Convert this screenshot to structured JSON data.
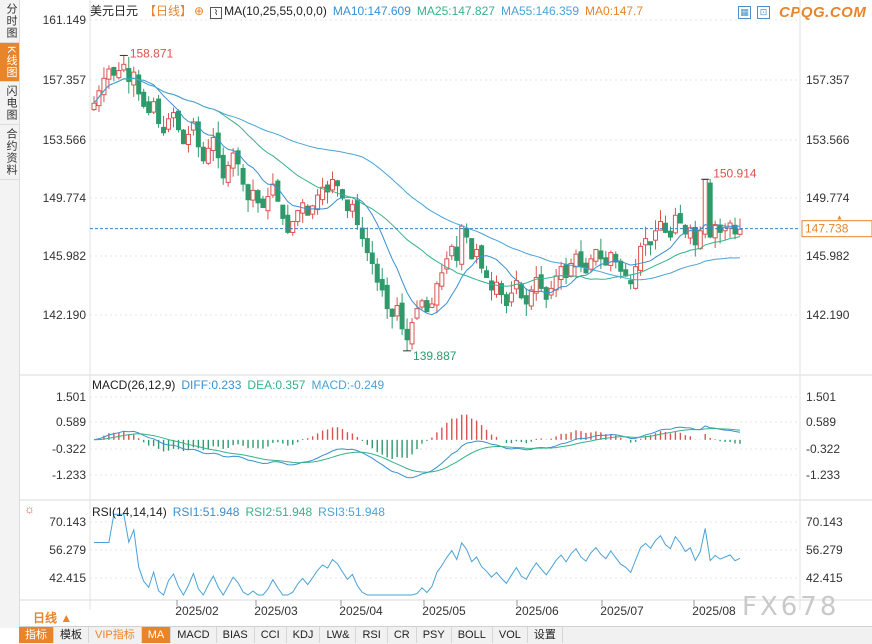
{
  "sidebar": {
    "tabs": [
      {
        "label": "分时图",
        "active": false
      },
      {
        "label": "K线图",
        "active": true
      },
      {
        "label": "闪电图",
        "active": false
      },
      {
        "label": "合约资料",
        "active": false
      }
    ]
  },
  "header": {
    "symbol": "美元日元",
    "period_tag": "【日线】",
    "ma_name": "MA(10,25,55,0,0,0)",
    "ma10": "MA10:147.609",
    "ma25": "MA25:147.827",
    "ma55": "MA55:146.359",
    "ma0": "MA0:147.7"
  },
  "logo": "CPQG.COM",
  "watermark": "FX678",
  "colors": {
    "up": "#d9534f",
    "down": "#2e9a6b",
    "ma10": "#3a8fd0",
    "ma25": "#33b38a",
    "ma55": "#4aa3d6",
    "accent": "#e8852b",
    "grid": "#e6e6e6",
    "last_line": "#3a7fc0"
  },
  "price_chart": {
    "ticks": [
      "161.149",
      "157.357",
      "153.566",
      "149.774",
      "145.982",
      "142.190"
    ],
    "last_price": "147.738",
    "high_label": "158.871",
    "low_label": "139.887",
    "recent_high_label": "150.914"
  },
  "macd": {
    "title": "MACD(26,12,9)",
    "diff": "DIFF:0.233",
    "dea": "DEA:0.357",
    "macd": "MACD:-0.249",
    "ticks": [
      "1.501",
      "0.589",
      "-0.322",
      "-1.233"
    ]
  },
  "rsi": {
    "title": "RSI(14,14,14)",
    "rsi1": "RSI1:51.948",
    "rsi2": "RSI2:51.948",
    "rsi3": "RSI3:51.948",
    "ticks": [
      "70.143",
      "56.279",
      "42.415"
    ]
  },
  "x_axis": {
    "months": [
      "2025/02",
      "2025/03",
      "2025/04",
      "2025/05",
      "2025/06",
      "2025/07",
      "2025/08"
    ]
  },
  "period_selector": "日线",
  "toolbar": [
    "指标",
    "模板",
    "VIP指标",
    "MA",
    "MACD",
    "BIAS",
    "CCI",
    "KDJ",
    "LW&",
    "RSI",
    "CR",
    "PSY",
    "BOLL",
    "VOL",
    "设置"
  ],
  "chart_data": {
    "type": "candlestick",
    "series_close": [
      155.8,
      156.6,
      157.4,
      158.0,
      157.6,
      157.9,
      158.3,
      157.2,
      157.8,
      156.4,
      155.6,
      155.2,
      155.9,
      154.5,
      153.9,
      154.8,
      155.2,
      154.1,
      153.2,
      153.8,
      154.6,
      153.0,
      152.1,
      152.9,
      153.6,
      152.3,
      151.0,
      151.8,
      152.6,
      151.9,
      150.6,
      149.6,
      150.2,
      149.4,
      149.1,
      149.8,
      150.6,
      149.5,
      148.4,
      147.5,
      148.2,
      148.9,
      149.4,
      148.6,
      149.2,
      149.9,
      150.4,
      150.1,
      150.9,
      150.5,
      149.7,
      148.9,
      149.3,
      148.0,
      147.1,
      146.2,
      145.5,
      144.3,
      143.8,
      142.6,
      142.1,
      142.8,
      141.3,
      140.6,
      141.7,
      142.6,
      143.1,
      142.4,
      142.9,
      144.2,
      144.9,
      145.8,
      146.6,
      145.7,
      147.9,
      147.2,
      145.8,
      146.4,
      145.2,
      144.6,
      143.8,
      144.3,
      143.5,
      142.8,
      143.6,
      144.4,
      143.3,
      142.9,
      143.8,
      144.6,
      143.9,
      143.2,
      143.9,
      144.7,
      145.3,
      144.6,
      145.5,
      146.1,
      145.3,
      144.9,
      145.8,
      146.4,
      145.8,
      145.4,
      146.2,
      145.6,
      145.0,
      144.7,
      144.2,
      145.3,
      146.6,
      147.1,
      146.7,
      147.6,
      148.2,
      147.5,
      147.2,
      148.6,
      148.1,
      147.4,
      147.8,
      146.7,
      147.6,
      150.9,
      147.2,
      148.0,
      147.5,
      147.8,
      148.1,
      147.4,
      147.7
    ],
    "high": "158.871",
    "low": "139.887",
    "last": "147.738",
    "ma10": "147.609",
    "ma25": "147.827",
    "ma55": "146.359"
  }
}
